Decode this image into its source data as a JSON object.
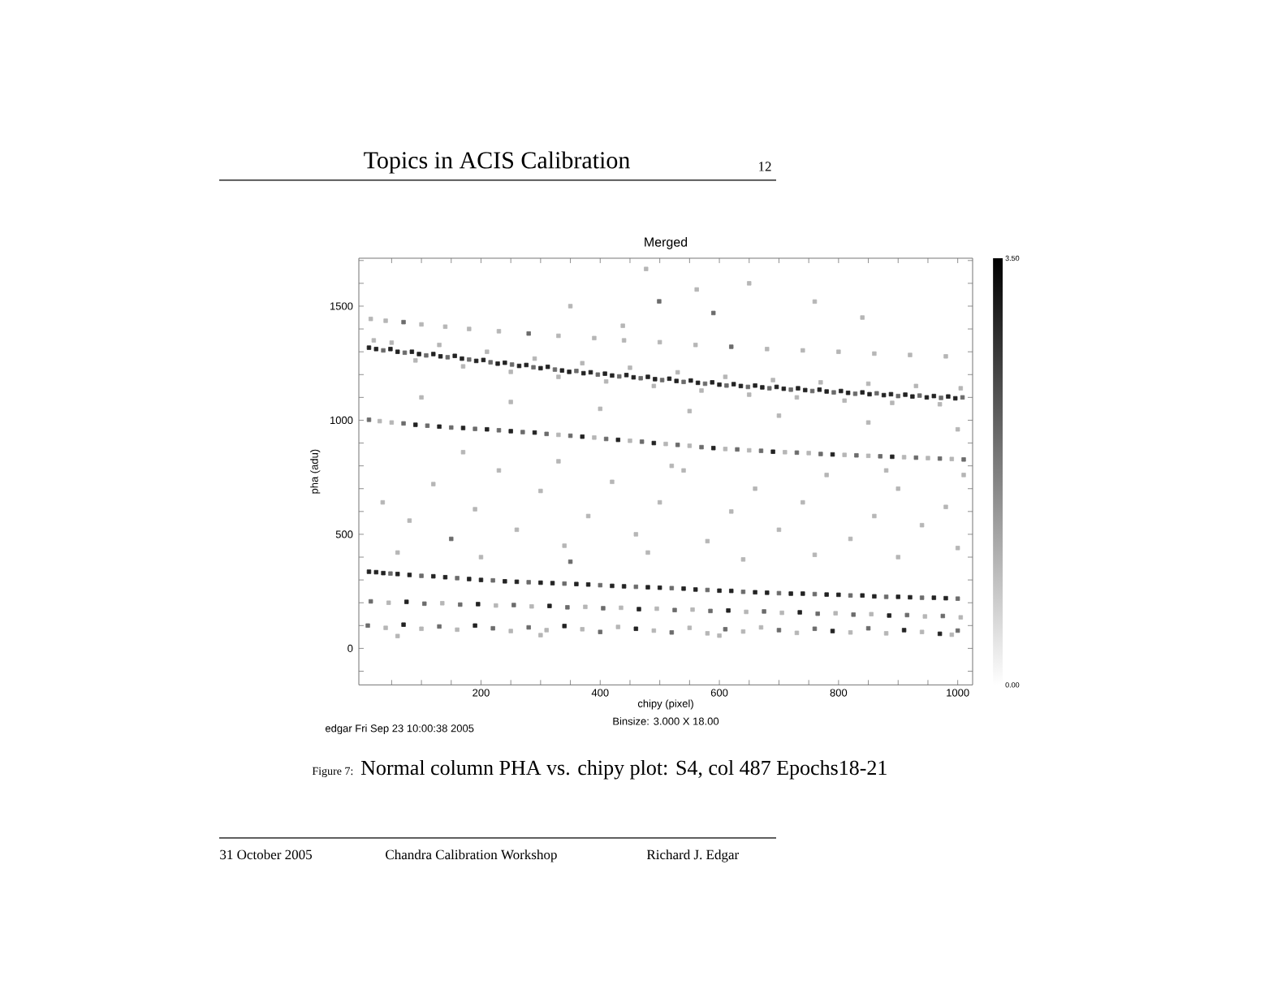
{
  "chart_data": {
    "type": "scatter",
    "title": "Merged",
    "xlabel": "chipy (pixel)",
    "ylabel": "pha (adu)",
    "annotations": [
      "Binsize: 3.000 X 18.00",
      "edgar Fri Sep 23 10:00:38 2005",
      "Topics in ACIS Calibration",
      "12",
      "Figure 7:",
      "Normal column PHA vs. chipy plot: S4, col 487 Epochs18-21",
      "31 October 2005",
      "Chandra Calibration Workshop",
      "Richard J. Edgar"
    ],
    "marker": "square",
    "xlim": [
      -5,
      1025
    ],
    "ylim": [
      -160,
      1710
    ],
    "xticks": [
      {
        "value": 50,
        "label": null
      },
      {
        "value": 100,
        "label": null
      },
      {
        "value": 150,
        "label": null
      },
      200,
      {
        "value": 250,
        "label": null
      },
      {
        "value": 300,
        "label": null
      },
      {
        "value": 350,
        "label": null
      },
      400,
      {
        "value": 450,
        "label": null
      },
      {
        "value": 500,
        "label": null
      },
      {
        "value": 550,
        "label": null
      },
      600,
      {
        "value": 650,
        "label": null
      },
      {
        "value": 700,
        "label": null
      },
      {
        "value": 750,
        "label": null
      },
      800,
      {
        "value": 850,
        "label": null
      },
      {
        "value": 900,
        "label": null
      },
      {
        "value": 950,
        "label": null
      },
      1000
    ],
    "yticks": [
      {
        "value": -100,
        "label": null
      },
      0,
      {
        "value": 100,
        "label": null
      },
      {
        "value": 200,
        "label": null
      },
      {
        "value": 300,
        "label": null
      },
      {
        "value": 400,
        "label": null
      },
      500,
      {
        "value": 600,
        "label": null
      },
      {
        "value": 700,
        "label": null
      },
      {
        "value": 800,
        "label": null
      },
      {
        "value": 900,
        "label": null
      },
      1000,
      {
        "value": 1100,
        "label": null
      },
      {
        "value": 1200,
        "label": null
      },
      {
        "value": 1300,
        "label": null
      },
      {
        "value": 1400,
        "label": null
      },
      1500,
      {
        "value": 1600,
        "label": null
      },
      {
        "value": 1700,
        "label": null
      }
    ],
    "clim": [
      0,
      3.5
    ],
    "cticks": [
      {
        "value": 0,
        "label": "0.00"
      },
      {
        "value": 3.5,
        "label": "3.50"
      }
    ],
    "x": [
      12,
      24,
      36,
      48,
      60,
      72,
      84,
      96,
      108,
      120,
      132,
      144,
      156,
      168,
      180,
      192,
      204,
      216,
      228,
      240,
      252,
      264,
      276,
      288,
      300,
      312,
      324,
      336,
      348,
      360,
      372,
      384,
      396,
      408,
      420,
      432,
      444,
      456,
      468,
      480,
      492,
      504,
      516,
      528,
      540,
      552,
      564,
      576,
      588,
      600,
      612,
      624,
      636,
      648,
      660,
      672,
      684,
      696,
      708,
      720,
      732,
      744,
      756,
      768,
      780,
      792,
      804,
      816,
      828,
      840,
      852,
      864,
      876,
      888,
      900,
      912,
      924,
      936,
      948,
      960,
      972,
      984,
      996,
      1008,
      20,
      50,
      90,
      130,
      170,
      210,
      250,
      290,
      330,
      370,
      410,
      450,
      490,
      530,
      570,
      610,
      650,
      690,
      730,
      770,
      810,
      850,
      890,
      930,
      970,
      1005,
      15,
      40,
      70,
      100,
      140,
      180,
      230,
      280,
      330,
      390,
      440,
      500,
      560,
      620,
      680,
      740,
      800,
      860,
      920,
      980,
      12,
      30,
      50,
      70,
      90,
      110,
      130,
      150,
      170,
      190,
      210,
      230,
      250,
      270,
      290,
      310,
      330,
      350,
      370,
      390,
      410,
      430,
      450,
      470,
      490,
      510,
      530,
      550,
      570,
      590,
      610,
      630,
      650,
      670,
      690,
      710,
      730,
      750,
      770,
      790,
      810,
      830,
      850,
      870,
      890,
      910,
      930,
      950,
      970,
      990,
      1010,
      12,
      24,
      36,
      48,
      60,
      80,
      100,
      120,
      140,
      160,
      180,
      200,
      220,
      240,
      260,
      280,
      300,
      320,
      340,
      360,
      380,
      400,
      420,
      440,
      460,
      480,
      500,
      520,
      540,
      560,
      580,
      600,
      620,
      640,
      660,
      680,
      700,
      720,
      740,
      760,
      780,
      800,
      820,
      840,
      860,
      880,
      900,
      920,
      940,
      960,
      980,
      1000,
      15,
      45,
      75,
      105,
      135,
      165,
      195,
      225,
      255,
      285,
      315,
      345,
      375,
      405,
      435,
      465,
      495,
      525,
      555,
      585,
      615,
      645,
      675,
      705,
      735,
      765,
      795,
      825,
      855,
      885,
      915,
      945,
      975,
      1005,
      10,
      40,
      70,
      100,
      130,
      160,
      190,
      220,
      250,
      280,
      310,
      340,
      370,
      400,
      430,
      460,
      490,
      520,
      550,
      580,
      610,
      640,
      670,
      700,
      730,
      760,
      790,
      820,
      850,
      880,
      910,
      940,
      970,
      1000,
      990,
      600,
      300,
      60,
      35,
      80,
      120,
      150,
      190,
      230,
      260,
      300,
      340,
      380,
      420,
      460,
      500,
      540,
      580,
      620,
      660,
      700,
      740,
      780,
      820,
      860,
      900,
      940,
      980,
      1010,
      60,
      200,
      350,
      480,
      640,
      760,
      900,
      1000,
      100,
      250,
      400,
      550,
      700,
      850,
      1000,
      170,
      330,
      520,
      880,
      499,
      438,
      562,
      477,
      650,
      760,
      590,
      840,
      350
    ],
    "values": [
      1318,
      1312,
      1306,
      1312,
      1300,
      1296,
      1300,
      1290,
      1284,
      1290,
      1280,
      1276,
      1282,
      1270,
      1266,
      1260,
      1264,
      1254,
      1248,
      1252,
      1244,
      1238,
      1242,
      1232,
      1228,
      1234,
      1222,
      1218,
      1212,
      1216,
      1206,
      1210,
      1200,
      1204,
      1196,
      1192,
      1198,
      1188,
      1184,
      1190,
      1180,
      1176,
      1182,
      1172,
      1168,
      1174,
      1164,
      1160,
      1166,
      1156,
      1152,
      1158,
      1150,
      1146,
      1152,
      1144,
      1140,
      1146,
      1138,
      1134,
      1140,
      1132,
      1128,
      1134,
      1126,
      1122,
      1128,
      1120,
      1116,
      1122,
      1114,
      1118,
      1110,
      1114,
      1106,
      1112,
      1104,
      1108,
      1100,
      1106,
      1098,
      1104,
      1096,
      1100,
      1350,
      1340,
      1262,
      1330,
      1236,
      1300,
      1212,
      1270,
      1190,
      1250,
      1170,
      1230,
      1150,
      1210,
      1130,
      1190,
      1112,
      1176,
      1100,
      1166,
      1086,
      1160,
      1076,
      1150,
      1070,
      1140,
      1444,
      1436,
      1430,
      1420,
      1410,
      1400,
      1390,
      1380,
      1370,
      1360,
      1350,
      1342,
      1330,
      1322,
      1312,
      1306,
      1300,
      1292,
      1286,
      1280,
      1002,
      996,
      990,
      986,
      980,
      976,
      972,
      968,
      966,
      962,
      960,
      956,
      952,
      948,
      946,
      940,
      936,
      932,
      928,
      924,
      918,
      914,
      910,
      906,
      900,
      896,
      892,
      888,
      882,
      878,
      874,
      872,
      868,
      866,
      862,
      860,
      858,
      856,
      852,
      850,
      848,
      846,
      844,
      842,
      840,
      838,
      836,
      834,
      832,
      830,
      828,
      336,
      334,
      330,
      328,
      326,
      322,
      318,
      316,
      312,
      308,
      304,
      300,
      298,
      294,
      292,
      290,
      288,
      286,
      284,
      282,
      280,
      277,
      274,
      272,
      270,
      268,
      266,
      264,
      262,
      258,
      256,
      253,
      252,
      248,
      246,
      244,
      242,
      240,
      240,
      238,
      236,
      235,
      232,
      232,
      228,
      226,
      226,
      224,
      222,
      222,
      220,
      218,
      206,
      200,
      204,
      196,
      198,
      192,
      194,
      188,
      190,
      184,
      186,
      180,
      182,
      176,
      178,
      172,
      174,
      168,
      170,
      164,
      166,
      160,
      162,
      156,
      158,
      152,
      154,
      148,
      150,
      144,
      146,
      140,
      142,
      136,
      100,
      90,
      104,
      86,
      96,
      82,
      100,
      88,
      76,
      92,
      80,
      98,
      84,
      72,
      94,
      86,
      78,
      70,
      90,
      66,
      84,
      74,
      92,
      80,
      68,
      86,
      76,
      70,
      88,
      66,
      80,
      72,
      64,
      78,
      60,
      56,
      58,
      54,
      640,
      560,
      720,
      480,
      610,
      780,
      520,
      690,
      450,
      580,
      730,
      500,
      640,
      780,
      470,
      600,
      700,
      520,
      640,
      760,
      480,
      580,
      700,
      540,
      620,
      760,
      420,
      400,
      380,
      420,
      390,
      410,
      400,
      440,
      1100,
      1080,
      1050,
      1040,
      1020,
      990,
      960,
      860,
      820,
      800,
      780,
      1521,
      1414,
      1573,
      1663,
      1600,
      1520,
      1470,
      1450,
      1500
    ],
    "cvalues": [
      3,
      3,
      2,
      3,
      3,
      2,
      3,
      3,
      2,
      3,
      3,
      2,
      3,
      3,
      2,
      3,
      3,
      2,
      3,
      3,
      2,
      3,
      3,
      2,
      3,
      3,
      2,
      3,
      3,
      2,
      3,
      3,
      2,
      3,
      3,
      2,
      3,
      3,
      2,
      3,
      3,
      2,
      3,
      3,
      2,
      3,
      3,
      2,
      3,
      3,
      2,
      3,
      3,
      2,
      3,
      3,
      2,
      3,
      3,
      2,
      3,
      3,
      2,
      3,
      3,
      2,
      3,
      3,
      2,
      3,
      3,
      2,
      3,
      3,
      2,
      3,
      3,
      2,
      3,
      3,
      2,
      3,
      3,
      2,
      1,
      1,
      1,
      1,
      1,
      1,
      1,
      1,
      1,
      1,
      1,
      1,
      1,
      1,
      1,
      1,
      1,
      1,
      1,
      1,
      1,
      1,
      1,
      1,
      1,
      1,
      1,
      1,
      2,
      1,
      1,
      1,
      1,
      2,
      1,
      1,
      1,
      1,
      1,
      2,
      1,
      1,
      1,
      1,
      1,
      1,
      2,
      1,
      1,
      2,
      3,
      2,
      3,
      2,
      3,
      2,
      3,
      2,
      3,
      2,
      3,
      2,
      1,
      2,
      3,
      1,
      2,
      3,
      1,
      2,
      3,
      1,
      2,
      1,
      2,
      3,
      1,
      2,
      1,
      2,
      3,
      1,
      2,
      1,
      2,
      3,
      1,
      2,
      1,
      2,
      3,
      1,
      2,
      1,
      2,
      1,
      2,
      3,
      3,
      3,
      2,
      3,
      3,
      2,
      3,
      3,
      2,
      3,
      3,
      2,
      3,
      3,
      2,
      3,
      3,
      2,
      3,
      3,
      2,
      3,
      3,
      2,
      3,
      3,
      2,
      3,
      3,
      2,
      3,
      3,
      2,
      3,
      3,
      2,
      3,
      3,
      2,
      3,
      3,
      2,
      3,
      3,
      2,
      3,
      3,
      2,
      3,
      3,
      2,
      2,
      1,
      3,
      2,
      1,
      2,
      3,
      1,
      2,
      1,
      3,
      2,
      1,
      2,
      1,
      3,
      1,
      2,
      1,
      2,
      3,
      1,
      2,
      1,
      3,
      2,
      1,
      2,
      1,
      3,
      2,
      1,
      2,
      1,
      2,
      1,
      3,
      1,
      2,
      1,
      3,
      2,
      1,
      2,
      1,
      3,
      1,
      2,
      1,
      3,
      1,
      2,
      1,
      1,
      2,
      1,
      1,
      2,
      1,
      2,
      3,
      1,
      2,
      1,
      3,
      1,
      3,
      2,
      1,
      1,
      1,
      1,
      1,
      1,
      1,
      2,
      1,
      1,
      1,
      1,
      1,
      1,
      1,
      1,
      1,
      1,
      1,
      1,
      1,
      1,
      1,
      1,
      1,
      1,
      1,
      1,
      1,
      1,
      1,
      1,
      2,
      1,
      1,
      1,
      1,
      1,
      1,
      1,
      1,
      1,
      1,
      1,
      1,
      1,
      1,
      1,
      1,
      2,
      1,
      1,
      1,
      1,
      1,
      2,
      1,
      1
    ]
  }
}
